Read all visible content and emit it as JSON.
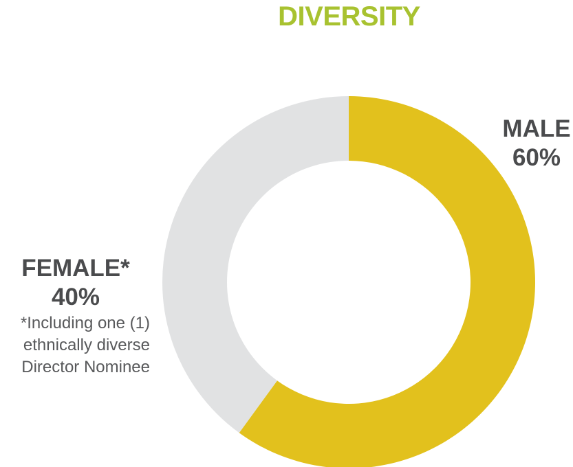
{
  "title": "DIVERSITY",
  "colors": {
    "title": "#a8c230",
    "male": "#e2c11d",
    "female": "#e1e2e3",
    "label_text": "#4a4b4d",
    "note_text": "#58595b"
  },
  "labels": {
    "male_name": "MALE",
    "male_value": "60%",
    "female_name": "FEMALE*",
    "female_value": "40%",
    "female_note": [
      "*Including one (1)",
      "ethnically diverse",
      "Director Nominee"
    ]
  },
  "chart_data": {
    "type": "pie",
    "title": "DIVERSITY",
    "categories": [
      "MALE",
      "FEMALE*"
    ],
    "values": [
      60,
      40
    ],
    "unit": "%",
    "donut": true,
    "start": "12 o'clock",
    "direction": "clockwise"
  }
}
